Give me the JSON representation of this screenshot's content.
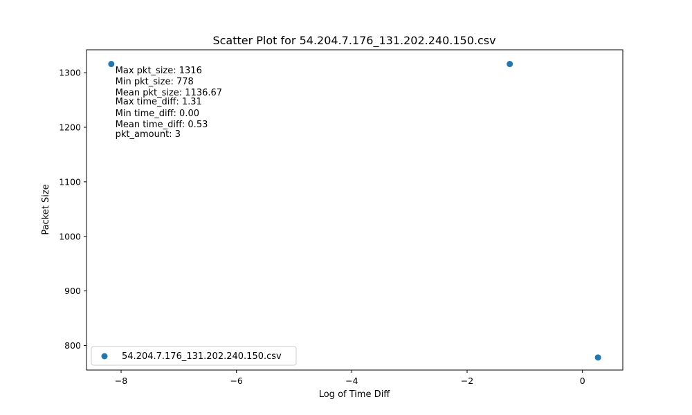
{
  "chart_data": {
    "type": "scatter",
    "title": "Scatter Plot for 54.204.7.176_131.202.240.150.csv",
    "xlabel": "Log of Time Diff",
    "ylabel": "Packet Size",
    "xlim": [
      -8.6,
      0.7
    ],
    "ylim": [
      755,
      1342
    ],
    "xticks": [
      -8,
      -6,
      -4,
      -2,
      0
    ],
    "xtick_labels": [
      "−8",
      "−6",
      "−4",
      "−2",
      "0"
    ],
    "yticks": [
      800,
      900,
      1000,
      1100,
      1200,
      1300
    ],
    "ytick_labels": [
      "800",
      "900",
      "1000",
      "1100",
      "1200",
      "1300"
    ],
    "grid": false,
    "legend_position": "lower-left",
    "series": [
      {
        "name": "54.204.7.176_131.202.240.150.csv",
        "color": "#1f77b4",
        "points": [
          {
            "x": -8.17,
            "y": 1316
          },
          {
            "x": -1.26,
            "y": 1316
          },
          {
            "x": 0.27,
            "y": 778
          }
        ]
      }
    ],
    "annotations": [
      "Max pkt_size: 1316",
      "Min pkt_size: 778",
      "Mean pkt_size: 1136.67",
      "Max time_diff: 1.31",
      "Min time_diff: 0.00",
      "Mean time_diff: 0.53",
      "pkt_amount: 3"
    ]
  }
}
